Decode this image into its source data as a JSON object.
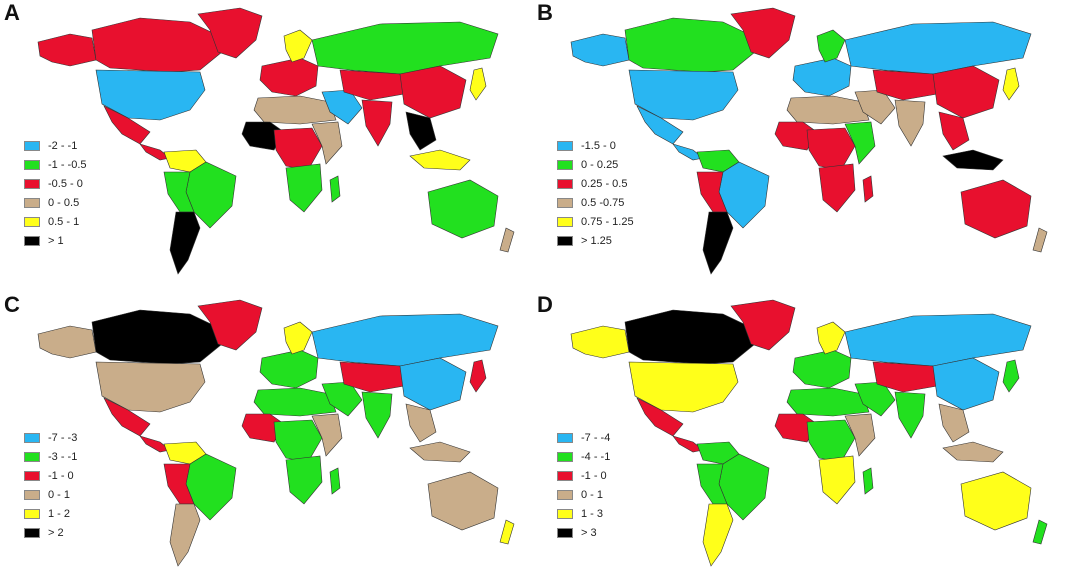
{
  "colors": {
    "blue": "#29b6f2",
    "green": "#22e01f",
    "red": "#e8102e",
    "tan": "#c9ad8a",
    "yellow": "#ffff1a",
    "black": "#000000"
  },
  "panels": [
    {
      "letter": "A",
      "legend": [
        {
          "label": "-2 - -1",
          "color": "#29b6f2"
        },
        {
          "label": "-1 - -0.5",
          "color": "#22e01f"
        },
        {
          "label": "-0.5 - 0",
          "color": "#e8102e"
        },
        {
          "label": "0 - 0.5",
          "color": "#c9ad8a"
        },
        {
          "label": "0.5 - 1",
          "color": "#ffff1a"
        },
        {
          "label": "> 1",
          "color": "#000000"
        }
      ],
      "regions": {
        "alaska": "#e8102e",
        "canada": "#e8102e",
        "greenland": "#e8102e",
        "usa": "#29b6f2",
        "mexico": "#e8102e",
        "central_america": "#e8102e",
        "north_south_america": "#ffff1a",
        "brazil": "#22e01f",
        "peru_bolivia": "#22e01f",
        "argentina": "#000000",
        "europe": "#e8102e",
        "scandinavia": "#ffff1a",
        "russia": "#22e01f",
        "north_africa": "#c9ad8a",
        "west_africa": "#000000",
        "central_africa": "#e8102e",
        "east_africa": "#c9ad8a",
        "southern_africa": "#22e01f",
        "madagascar": "#22e01f",
        "middle_east": "#29b6f2",
        "central_asia": "#e8102e",
        "india": "#e8102e",
        "china": "#e8102e",
        "southeast_asia": "#000000",
        "japan": "#ffff1a",
        "indonesia": "#ffff1a",
        "australia": "#22e01f",
        "new_zealand": "#c9ad8a"
      }
    },
    {
      "letter": "B",
      "legend": [
        {
          "label": "-1.5 - 0",
          "color": "#29b6f2"
        },
        {
          "label": "0 - 0.25",
          "color": "#22e01f"
        },
        {
          "label": "0.25 - 0.5",
          "color": "#e8102e"
        },
        {
          "label": "0.5 -0.75",
          "color": "#c9ad8a"
        },
        {
          "label": "0.75 - 1.25",
          "color": "#ffff1a"
        },
        {
          "label": "> 1.25",
          "color": "#000000"
        }
      ],
      "regions": {
        "alaska": "#29b6f2",
        "canada": "#22e01f",
        "greenland": "#e8102e",
        "usa": "#29b6f2",
        "mexico": "#29b6f2",
        "central_america": "#29b6f2",
        "north_south_america": "#22e01f",
        "brazil": "#29b6f2",
        "peru_bolivia": "#e8102e",
        "argentina": "#000000",
        "europe": "#29b6f2",
        "scandinavia": "#22e01f",
        "russia": "#29b6f2",
        "north_africa": "#c9ad8a",
        "west_africa": "#e8102e",
        "central_africa": "#e8102e",
        "east_africa": "#22e01f",
        "southern_africa": "#e8102e",
        "madagascar": "#e8102e",
        "middle_east": "#c9ad8a",
        "central_asia": "#e8102e",
        "india": "#c9ad8a",
        "china": "#e8102e",
        "southeast_asia": "#e8102e",
        "japan": "#ffff1a",
        "indonesia": "#000000",
        "australia": "#e8102e",
        "new_zealand": "#c9ad8a"
      }
    },
    {
      "letter": "C",
      "legend": [
        {
          "label": "-7 - -3",
          "color": "#29b6f2"
        },
        {
          "label": "-3 - -1",
          "color": "#22e01f"
        },
        {
          "label": "-1 - 0",
          "color": "#e8102e"
        },
        {
          "label": "0 - 1",
          "color": "#c9ad8a"
        },
        {
          "label": "1 - 2",
          "color": "#ffff1a"
        },
        {
          "label": "> 2",
          "color": "#000000"
        }
      ],
      "regions": {
        "alaska": "#c9ad8a",
        "canada": "#000000",
        "greenland": "#e8102e",
        "usa": "#c9ad8a",
        "mexico": "#e8102e",
        "central_america": "#e8102e",
        "north_south_america": "#ffff1a",
        "brazil": "#22e01f",
        "peru_bolivia": "#e8102e",
        "argentina": "#c9ad8a",
        "europe": "#22e01f",
        "scandinavia": "#ffff1a",
        "russia": "#29b6f2",
        "north_africa": "#22e01f",
        "west_africa": "#e8102e",
        "central_africa": "#22e01f",
        "east_africa": "#c9ad8a",
        "southern_africa": "#22e01f",
        "madagascar": "#22e01f",
        "middle_east": "#22e01f",
        "central_asia": "#e8102e",
        "india": "#22e01f",
        "china": "#29b6f2",
        "southeast_asia": "#c9ad8a",
        "japan": "#e8102e",
        "indonesia": "#c9ad8a",
        "australia": "#c9ad8a",
        "new_zealand": "#ffff1a"
      }
    },
    {
      "letter": "D",
      "legend": [
        {
          "label": "-7 - -4",
          "color": "#29b6f2"
        },
        {
          "label": "-4 - -1",
          "color": "#22e01f"
        },
        {
          "label": "-1 - 0",
          "color": "#e8102e"
        },
        {
          "label": "0 - 1",
          "color": "#c9ad8a"
        },
        {
          "label": "1 - 3",
          "color": "#ffff1a"
        },
        {
          "label": "> 3",
          "color": "#000000"
        }
      ],
      "regions": {
        "alaska": "#ffff1a",
        "canada": "#000000",
        "greenland": "#e8102e",
        "usa": "#ffff1a",
        "mexico": "#e8102e",
        "central_america": "#e8102e",
        "north_south_america": "#22e01f",
        "brazil": "#22e01f",
        "peru_bolivia": "#22e01f",
        "argentina": "#ffff1a",
        "europe": "#22e01f",
        "scandinavia": "#ffff1a",
        "russia": "#29b6f2",
        "north_africa": "#22e01f",
        "west_africa": "#e8102e",
        "central_africa": "#22e01f",
        "east_africa": "#c9ad8a",
        "southern_africa": "#ffff1a",
        "madagascar": "#22e01f",
        "middle_east": "#22e01f",
        "central_asia": "#e8102e",
        "india": "#22e01f",
        "china": "#29b6f2",
        "southeast_asia": "#c9ad8a",
        "japan": "#22e01f",
        "indonesia": "#c9ad8a",
        "australia": "#ffff1a",
        "new_zealand": "#22e01f"
      }
    }
  ]
}
